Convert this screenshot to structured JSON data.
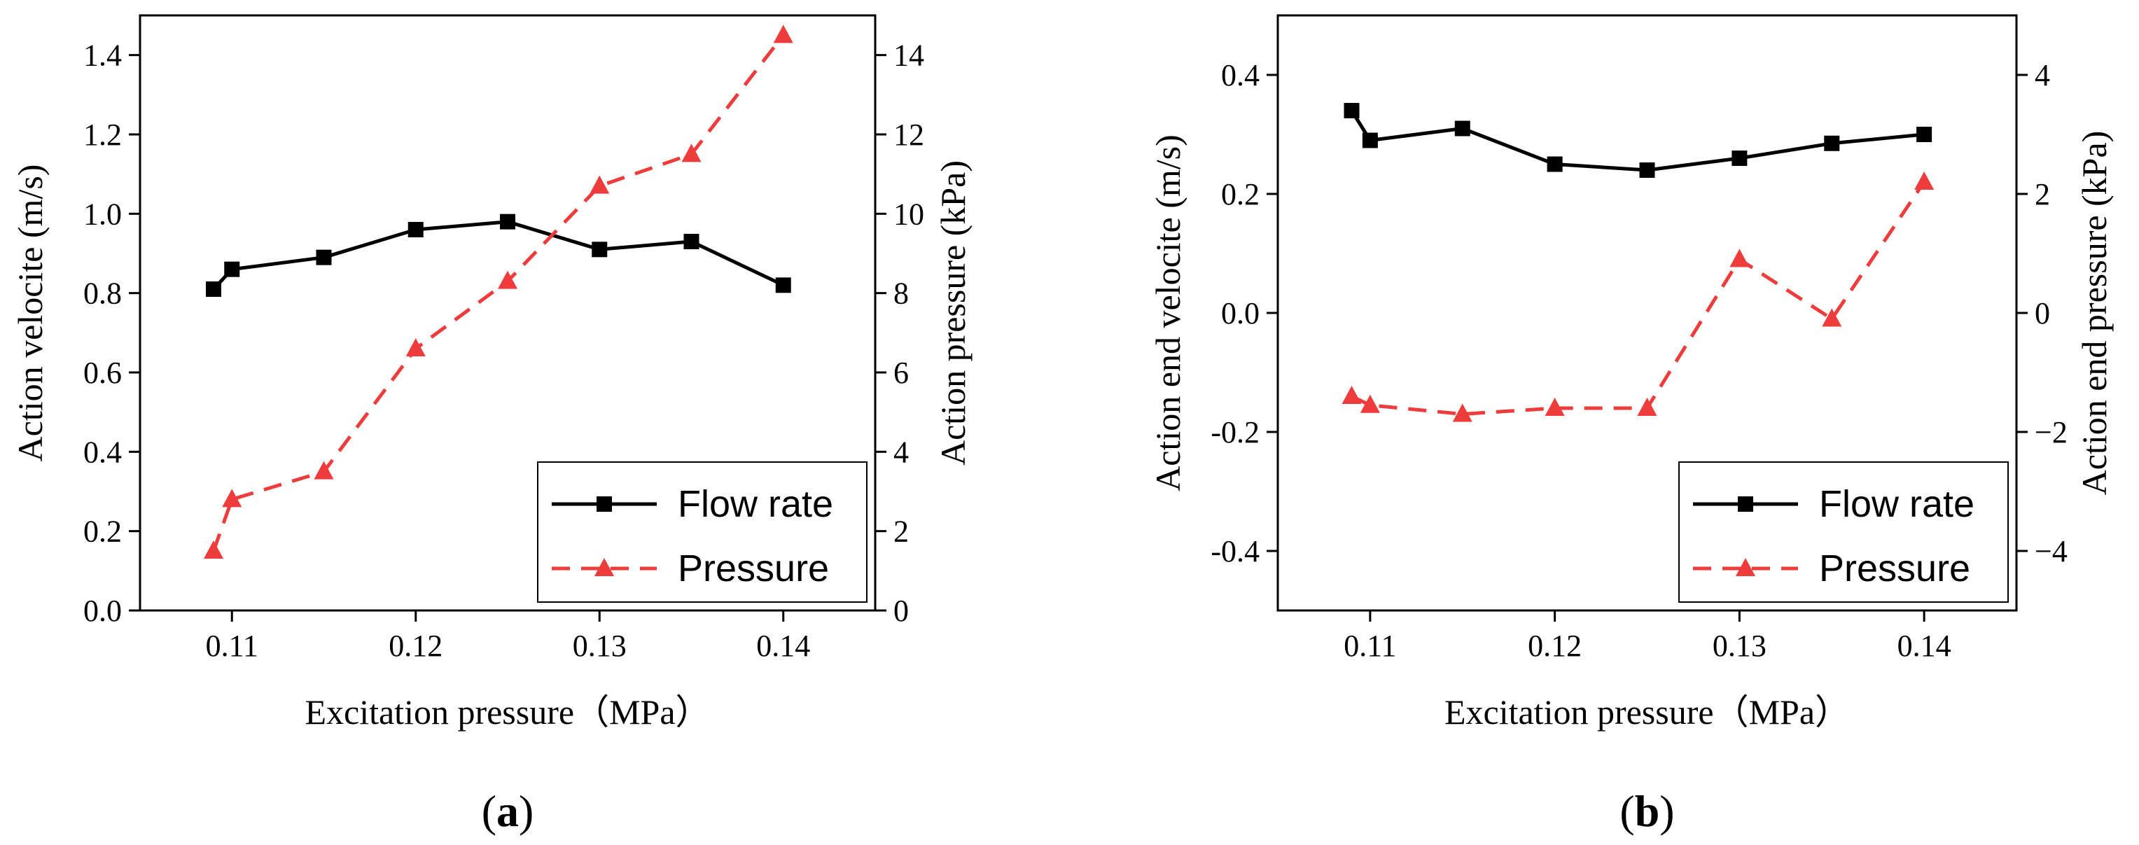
{
  "chart_data": [
    {
      "type": "line",
      "panel_label": "a",
      "xlabel": "Excitation pressure（MPa）",
      "ylabel_left": "Action velocite (m/s)",
      "ylabel_right": "Action pressure (kPa)",
      "xlim": [
        0.105,
        0.145
      ],
      "ylim_left": [
        0.0,
        1.5
      ],
      "ylim_right": [
        0,
        15
      ],
      "x_ticks": [
        0.11,
        0.12,
        0.13,
        0.14
      ],
      "x_tick_labels": [
        "0.11",
        "0.12",
        "0.13",
        "0.14"
      ],
      "y_left_ticks": [
        0.0,
        0.2,
        0.4,
        0.6,
        0.8,
        1.0,
        1.2,
        1.4
      ],
      "y_left_tick_labels": [
        "0.0",
        "0.2",
        "0.4",
        "0.6",
        "0.8",
        "1.0",
        "1.2",
        "1.4"
      ],
      "y_right_ticks": [
        0,
        2,
        4,
        6,
        8,
        10,
        12,
        14
      ],
      "y_right_tick_labels": [
        "0",
        "2",
        "4",
        "6",
        "8",
        "10",
        "12",
        "14"
      ],
      "legend_position": "bottom-right",
      "series": [
        {
          "name": "Flow rate",
          "axis": "left",
          "color": "#000000",
          "marker": "square",
          "line": "solid",
          "x": [
            0.109,
            0.11,
            0.115,
            0.12,
            0.125,
            0.13,
            0.135,
            0.14
          ],
          "values": [
            0.81,
            0.86,
            0.89,
            0.96,
            0.98,
            0.91,
            0.93,
            0.82
          ]
        },
        {
          "name": "Pressure",
          "axis": "right",
          "color": "#ee3b3b",
          "marker": "triangle",
          "line": "dashed",
          "x": [
            0.109,
            0.11,
            0.115,
            0.12,
            0.125,
            0.13,
            0.135,
            0.14
          ],
          "values": [
            1.5,
            2.8,
            3.5,
            6.6,
            8.3,
            10.7,
            11.5,
            14.5
          ]
        }
      ]
    },
    {
      "type": "line",
      "panel_label": "b",
      "xlabel": "Excitation pressure（MPa）",
      "ylabel_left": "Action end velocite (m/s)",
      "ylabel_right": "Action end pressure (kPa)",
      "xlim": [
        0.105,
        0.145
      ],
      "ylim_left": [
        -0.5,
        0.5
      ],
      "ylim_right": [
        -5,
        5
      ],
      "x_ticks": [
        0.11,
        0.12,
        0.13,
        0.14
      ],
      "x_tick_labels": [
        "0.11",
        "0.12",
        "0.13",
        "0.14"
      ],
      "y_left_ticks": [
        -0.4,
        -0.2,
        0.0,
        0.2,
        0.4
      ],
      "y_left_tick_labels": [
        "-0.4",
        "-0.2",
        "0.0",
        "0.2",
        "0.4"
      ],
      "y_right_ticks": [
        -4,
        -2,
        0,
        2,
        4
      ],
      "y_right_tick_labels": [
        "−4",
        "−2",
        "0",
        "2",
        "4"
      ],
      "legend_position": "bottom-right",
      "series": [
        {
          "name": "Flow rate",
          "axis": "left",
          "color": "#000000",
          "marker": "square",
          "line": "solid",
          "x": [
            0.109,
            0.11,
            0.115,
            0.12,
            0.125,
            0.13,
            0.135,
            0.14
          ],
          "values": [
            0.34,
            0.29,
            0.31,
            0.25,
            0.24,
            0.26,
            0.285,
            0.3
          ]
        },
        {
          "name": "Pressure",
          "axis": "right",
          "color": "#ee3b3b",
          "marker": "triangle",
          "line": "dashed",
          "x": [
            0.109,
            0.11,
            0.115,
            0.12,
            0.125,
            0.13,
            0.135,
            0.14
          ],
          "values": [
            -1.4,
            -1.55,
            -1.7,
            -1.6,
            -1.6,
            0.9,
            -0.1,
            2.2
          ]
        }
      ]
    }
  ]
}
